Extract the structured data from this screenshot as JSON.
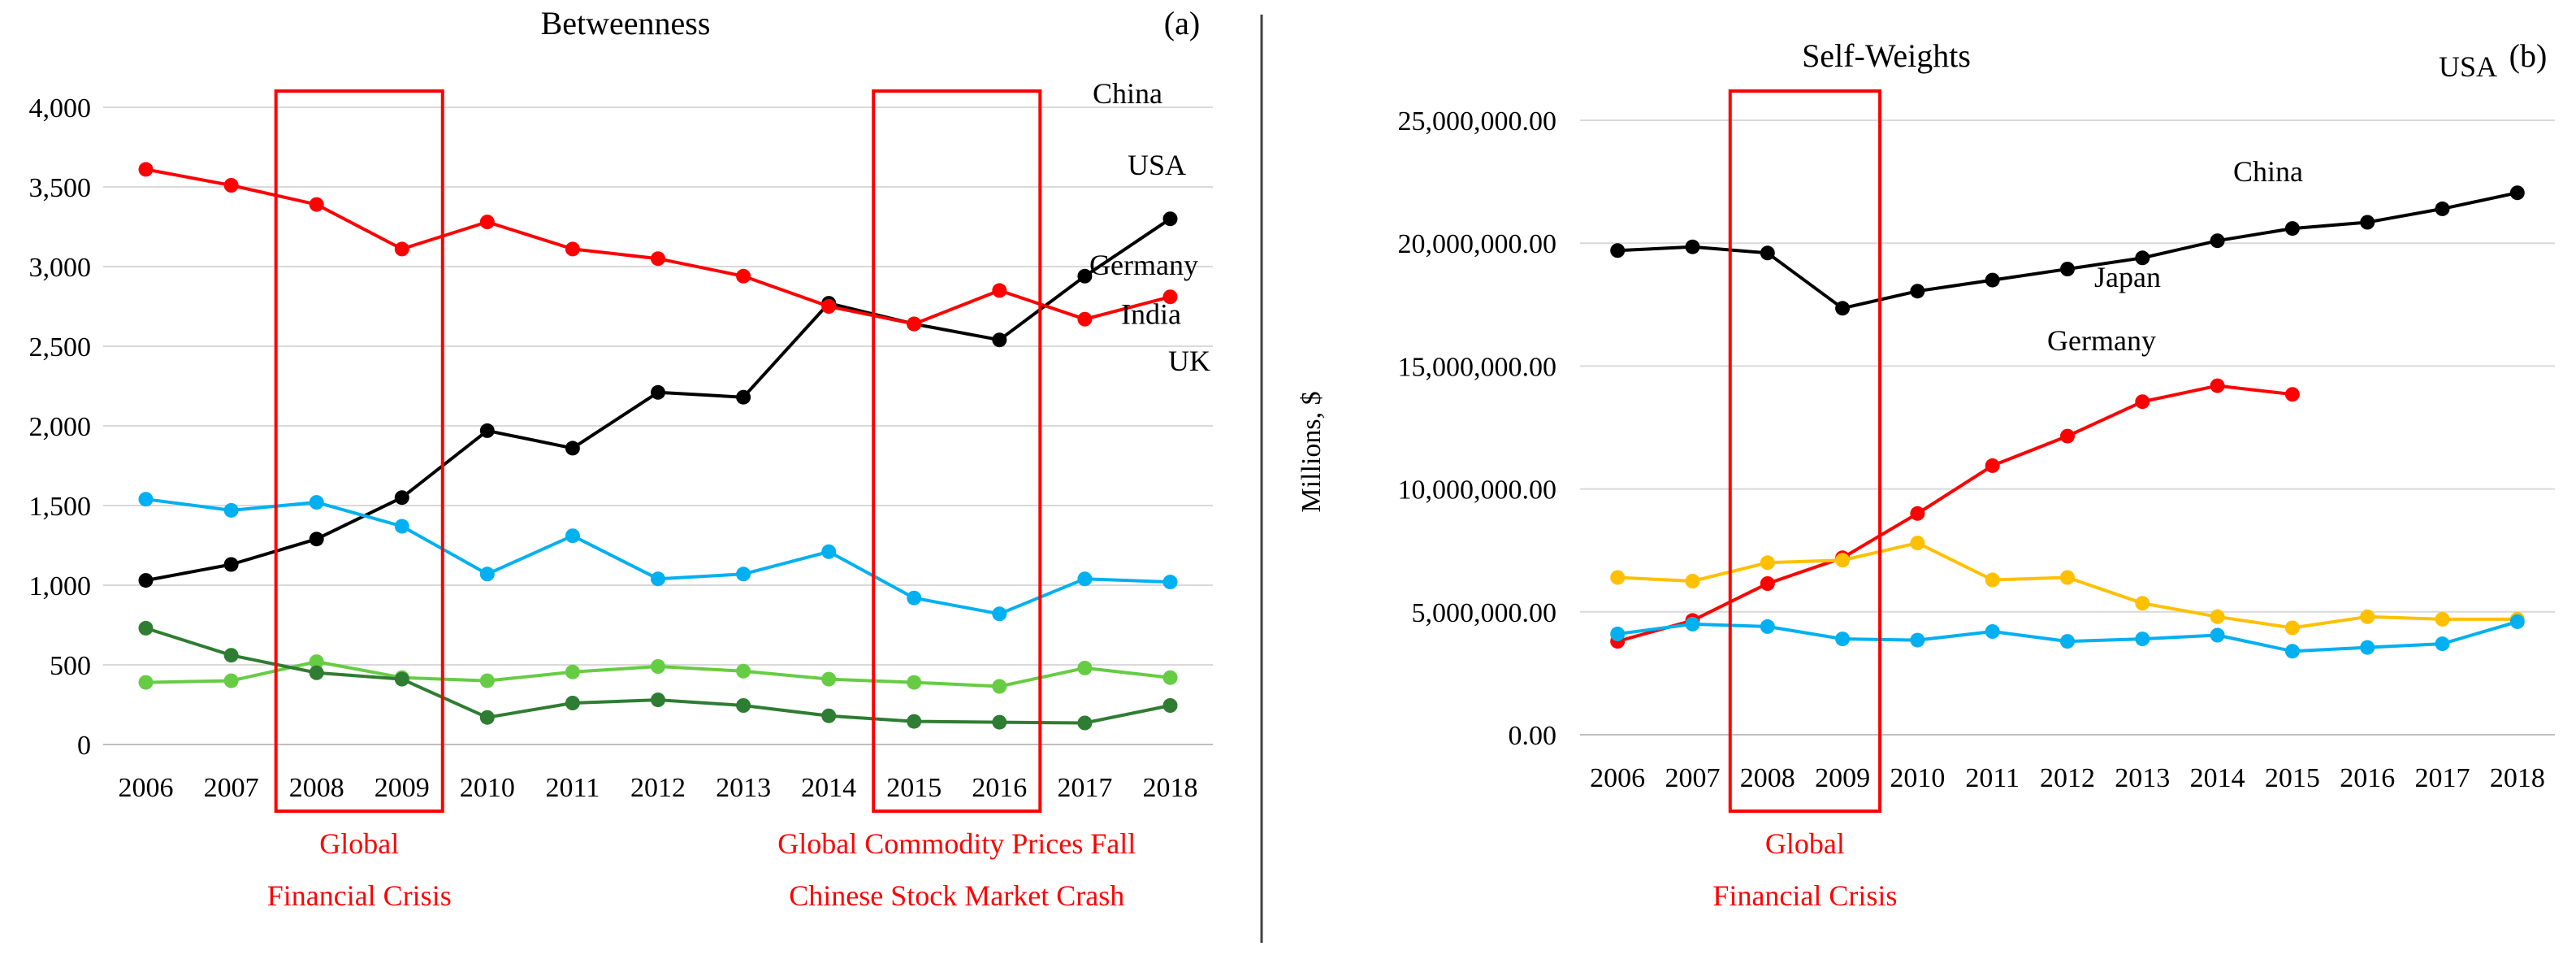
{
  "chart_data": [
    {
      "type": "line",
      "title": "Betweenness",
      "panel_label": "(a)",
      "xlabel": "",
      "ylabel": "",
      "ylim": [
        0,
        4000
      ],
      "grid": true,
      "y_ticks": [
        {
          "value": 0,
          "label": "0"
        },
        {
          "value": 500,
          "label": "500"
        },
        {
          "value": 1000,
          "label": "1,000"
        },
        {
          "value": 1500,
          "label": "1,500"
        },
        {
          "value": 2000,
          "label": "2,000"
        },
        {
          "value": 2500,
          "label": "2,500"
        },
        {
          "value": 3000,
          "label": "3,000"
        },
        {
          "value": 3500,
          "label": "3,500"
        },
        {
          "value": 4000,
          "label": "4,000"
        }
      ],
      "categories": [
        "2006",
        "2007",
        "2008",
        "2009",
        "2010",
        "2011",
        "2012",
        "2013",
        "2014",
        "2015",
        "2016",
        "2017",
        "2018"
      ],
      "series": [
        {
          "name": "China",
          "color": "#000000",
          "values": [
            1030,
            1130,
            1290,
            1550,
            1970,
            1860,
            2210,
            2180,
            2770,
            2640,
            2540,
            2940,
            3300
          ]
        },
        {
          "name": "USA",
          "color": "#ff0000",
          "values": [
            3610,
            3510,
            3390,
            3110,
            3280,
            3110,
            3050,
            2940,
            2750,
            2640,
            2850,
            2670,
            2810
          ]
        },
        {
          "name": "Germany",
          "color": "#00b0f0",
          "values": [
            1540,
            1470,
            1520,
            1370,
            1070,
            1310,
            1040,
            1070,
            1210,
            920,
            820,
            1040,
            1020
          ]
        },
        {
          "name": "India",
          "color": "#66cc44",
          "values": [
            390,
            400,
            520,
            420,
            400,
            455,
            490,
            460,
            410,
            390,
            365,
            480,
            420
          ]
        },
        {
          "name": "UK",
          "color": "#2e7d32",
          "values": [
            730,
            560,
            450,
            410,
            170,
            260,
            280,
            245,
            180,
            145,
            140,
            135,
            245
          ]
        }
      ],
      "highlights": [
        {
          "from": "2008",
          "to": "2009",
          "lines": [
            "Global",
            "Financial Crisis"
          ]
        },
        {
          "from": "2015",
          "to": "2016",
          "lines": [
            "Global Commodity Prices Fall",
            "Chinese Stock Market Crash"
          ]
        }
      ]
    },
    {
      "type": "line",
      "title": "Self-Weights",
      "panel_label": "(b)",
      "xlabel": "",
      "ylabel": "Millions, $",
      "ylim": [
        0,
        25000000
      ],
      "grid": true,
      "y_ticks": [
        {
          "value": 0,
          "label": "0.00"
        },
        {
          "value": 5000000,
          "label": "5,000,000.00"
        },
        {
          "value": 10000000,
          "label": "10,000,000.00"
        },
        {
          "value": 15000000,
          "label": "15,000,000.00"
        },
        {
          "value": 20000000,
          "label": "20,000,000.00"
        },
        {
          "value": 25000000,
          "label": "25,000,000.00"
        }
      ],
      "categories": [
        "2006",
        "2007",
        "2008",
        "2009",
        "2010",
        "2011",
        "2012",
        "2013",
        "2014",
        "2015",
        "2016",
        "2017",
        "2018"
      ],
      "series": [
        {
          "name": "USA",
          "color": "#000000",
          "values": [
            19700000,
            19850000,
            19600000,
            17350000,
            18050000,
            18500000,
            18950000,
            19400000,
            20100000,
            20600000,
            20850000,
            21400000,
            22050000
          ]
        },
        {
          "name": "China",
          "color": "#ff0000",
          "values": [
            3800000,
            4650000,
            6150000,
            7200000,
            9000000,
            10950000,
            12150000,
            13550000,
            14200000,
            13850000,
            null,
            null,
            null
          ]
        },
        {
          "name": "Japan",
          "color": "#ffc000",
          "values": [
            6400000,
            6250000,
            7000000,
            7100000,
            7800000,
            6300000,
            6400000,
            5350000,
            4800000,
            4350000,
            4800000,
            4700000,
            4700000
          ]
        },
        {
          "name": "Germany",
          "color": "#00b0f0",
          "values": [
            4100000,
            4500000,
            4400000,
            3900000,
            3850000,
            4200000,
            3800000,
            3900000,
            4050000,
            3400000,
            3550000,
            3700000,
            4600000
          ]
        }
      ],
      "highlights": [
        {
          "from": "2008",
          "to": "2009",
          "lines": [
            "Global",
            "Financial Crisis"
          ]
        }
      ]
    }
  ]
}
